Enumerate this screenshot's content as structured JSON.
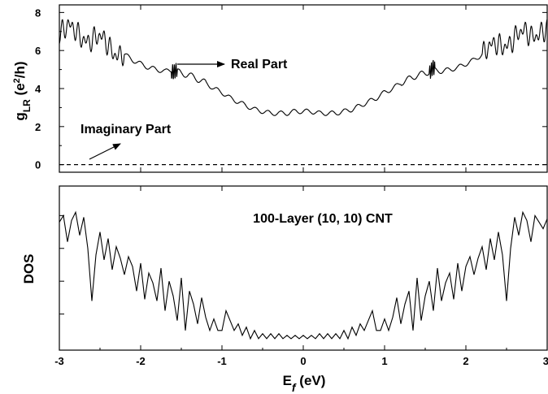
{
  "chart_data": [
    {
      "type": "line",
      "panel": "top",
      "ylabel": {
        "base": "g",
        "sub": "LR",
        "unit_pre": " (e",
        "unit_sup": "2",
        "unit_post": "/h)"
      },
      "xlim": [
        -3,
        3
      ],
      "ylim": [
        -0.4,
        8.4
      ],
      "yticks": [
        0,
        2,
        4,
        6,
        8
      ],
      "xticks": [
        -3,
        -2,
        -1,
        0,
        1,
        2,
        3
      ],
      "annotations": {
        "real_part": "Real Part",
        "imaginary_part": "Imaginary Part"
      },
      "series": [
        {
          "role": "real-part",
          "style": "solid",
          "x": [
            -3.0,
            -2.9,
            -2.8,
            -2.7,
            -2.6,
            -2.5,
            -2.4,
            -2.3,
            -2.2,
            -2.1,
            -2.0,
            -1.9,
            -1.8,
            -1.7,
            -1.6,
            -1.5,
            -1.4,
            -1.3,
            -1.2,
            -1.1,
            -1.0,
            -0.9,
            -0.8,
            -0.7,
            -0.6,
            -0.5,
            -0.4,
            -0.3,
            -0.2,
            -0.1,
            0.0,
            0.1,
            0.2,
            0.3,
            0.4,
            0.5,
            0.6,
            0.7,
            0.8,
            0.9,
            1.0,
            1.1,
            1.2,
            1.3,
            1.4,
            1.5,
            1.6,
            1.7,
            1.8,
            1.9,
            2.0,
            2.1,
            2.2,
            2.3,
            2.4,
            2.5,
            2.6,
            2.7,
            2.8,
            2.9,
            3.0
          ],
          "y": [
            7.0,
            7.1,
            6.9,
            6.8,
            6.6,
            6.5,
            6.3,
            6.0,
            5.8,
            5.5,
            5.3,
            5.1,
            5.0,
            4.9,
            5.0,
            4.8,
            4.7,
            4.5,
            4.3,
            4.0,
            3.8,
            3.5,
            3.3,
            3.1,
            2.9,
            2.8,
            2.7,
            2.7,
            2.7,
            2.8,
            2.8,
            2.8,
            2.7,
            2.7,
            2.7,
            2.8,
            2.9,
            3.1,
            3.3,
            3.5,
            3.8,
            4.0,
            4.3,
            4.5,
            4.7,
            4.8,
            5.0,
            4.9,
            5.0,
            5.1,
            5.3,
            5.5,
            5.8,
            6.0,
            6.3,
            6.5,
            6.6,
            6.8,
            6.9,
            7.1,
            7.0
          ]
        },
        {
          "role": "imaginary-part",
          "style": "dashed",
          "x": [
            -3,
            3
          ],
          "y": [
            0,
            0
          ]
        }
      ]
    },
    {
      "type": "line",
      "panel": "bottom",
      "ylabel": "DOS",
      "title": "100-Layer (10, 10) CNT",
      "xlabel": {
        "base": "E",
        "sub": "f",
        "post": " (eV)"
      },
      "xlim": [
        -3,
        3
      ],
      "ylim": [
        0,
        10
      ],
      "xticks": [
        -3,
        -2,
        -1,
        0,
        1,
        2,
        3
      ],
      "series": [
        {
          "role": "dos",
          "x": [
            -3.0,
            -2.95,
            -2.9,
            -2.85,
            -2.8,
            -2.75,
            -2.7,
            -2.65,
            -2.6,
            -2.55,
            -2.5,
            -2.45,
            -2.4,
            -2.35,
            -2.3,
            -2.25,
            -2.2,
            -2.15,
            -2.1,
            -2.05,
            -2.0,
            -1.95,
            -1.9,
            -1.85,
            -1.8,
            -1.75,
            -1.7,
            -1.65,
            -1.6,
            -1.55,
            -1.5,
            -1.45,
            -1.4,
            -1.35,
            -1.3,
            -1.25,
            -1.2,
            -1.15,
            -1.1,
            -1.05,
            -1.0,
            -0.95,
            -0.9,
            -0.85,
            -0.8,
            -0.75,
            -0.7,
            -0.65,
            -0.6,
            -0.55,
            -0.5,
            -0.45,
            -0.4,
            -0.35,
            -0.3,
            -0.25,
            -0.2,
            -0.15,
            -0.1,
            -0.05,
            0.0,
            0.05,
            0.1,
            0.15,
            0.2,
            0.25,
            0.3,
            0.35,
            0.4,
            0.45,
            0.5,
            0.55,
            0.6,
            0.65,
            0.7,
            0.75,
            0.8,
            0.85,
            0.9,
            0.95,
            1.0,
            1.05,
            1.1,
            1.15,
            1.2,
            1.25,
            1.3,
            1.35,
            1.4,
            1.45,
            1.5,
            1.55,
            1.6,
            1.65,
            1.7,
            1.75,
            1.8,
            1.85,
            1.9,
            1.95,
            2.0,
            2.05,
            2.1,
            2.15,
            2.2,
            2.25,
            2.3,
            2.35,
            2.4,
            2.45,
            2.5,
            2.55,
            2.6,
            2.65,
            2.7,
            2.75,
            2.8,
            2.85,
            2.9,
            2.95,
            3.0
          ],
          "y": [
            7.8,
            8.2,
            6.6,
            7.9,
            8.4,
            7.0,
            8.1,
            6.2,
            3.0,
            5.8,
            7.2,
            5.5,
            6.8,
            4.9,
            6.3,
            5.6,
            4.6,
            5.7,
            5.1,
            3.6,
            5.3,
            3.1,
            4.7,
            4.1,
            3.0,
            5.0,
            2.4,
            4.2,
            3.3,
            1.8,
            4.4,
            1.2,
            3.6,
            2.8,
            1.6,
            3.2,
            2.0,
            1.2,
            1.9,
            1.2,
            1.2,
            2.4,
            1.8,
            1.2,
            1.6,
            0.9,
            1.4,
            0.7,
            1.2,
            0.7,
            1.0,
            0.7,
            1.0,
            0.7,
            1.0,
            0.7,
            0.9,
            0.7,
            0.9,
            0.7,
            0.9,
            0.7,
            0.9,
            0.7,
            1.0,
            0.7,
            1.0,
            0.7,
            1.0,
            0.7,
            1.2,
            0.7,
            1.4,
            0.9,
            1.6,
            1.2,
            1.8,
            2.4,
            1.2,
            1.2,
            1.9,
            1.2,
            2.0,
            3.2,
            1.6,
            2.8,
            3.6,
            1.2,
            4.4,
            1.8,
            3.3,
            4.2,
            2.4,
            5.0,
            3.0,
            4.1,
            4.7,
            3.1,
            5.3,
            3.6,
            5.1,
            5.7,
            4.6,
            5.6,
            6.3,
            4.9,
            6.8,
            5.5,
            7.2,
            5.8,
            3.0,
            6.2,
            8.1,
            7.0,
            8.4,
            7.9,
            6.6,
            8.2,
            7.8,
            7.4,
            8.0
          ]
        }
      ]
    }
  ]
}
